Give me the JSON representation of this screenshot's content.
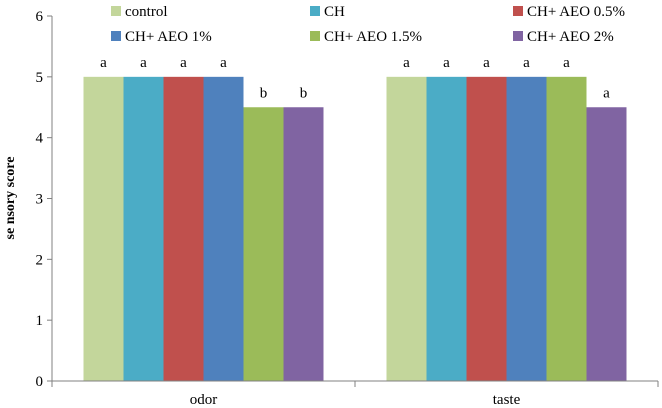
{
  "chart_data": {
    "type": "bar",
    "title": "",
    "xlabel": "",
    "ylabel": "se nsory score",
    "ylim": [
      0,
      6
    ],
    "yticks": [
      0,
      1,
      2,
      3,
      4,
      5,
      6
    ],
    "grid": false,
    "legend_position": "top",
    "categories": [
      "odor",
      "taste"
    ],
    "series": [
      {
        "name": "control",
        "color": "#c3d69b",
        "values": [
          5,
          5
        ],
        "labels": [
          "a",
          "a"
        ]
      },
      {
        "name": "CH",
        "color": "#4bacc6",
        "values": [
          5,
          5
        ],
        "labels": [
          "a",
          "a"
        ]
      },
      {
        "name": "CH+ AEO 0.5%",
        "color": "#c0504d",
        "values": [
          5,
          5
        ],
        "labels": [
          "a",
          "a"
        ]
      },
      {
        "name": "CH+ AEO 1%",
        "color": "#4f81bd",
        "values": [
          5,
          5
        ],
        "labels": [
          "a",
          "a"
        ]
      },
      {
        "name": "CH+ AEO 1.5%",
        "color": "#9bbb59",
        "values": [
          4.5,
          5
        ],
        "labels": [
          "b",
          "a"
        ]
      },
      {
        "name": "CH+ AEO 2%",
        "color": "#8064a2",
        "values": [
          4.5,
          4.5
        ],
        "labels": [
          "b",
          "a"
        ]
      }
    ]
  }
}
